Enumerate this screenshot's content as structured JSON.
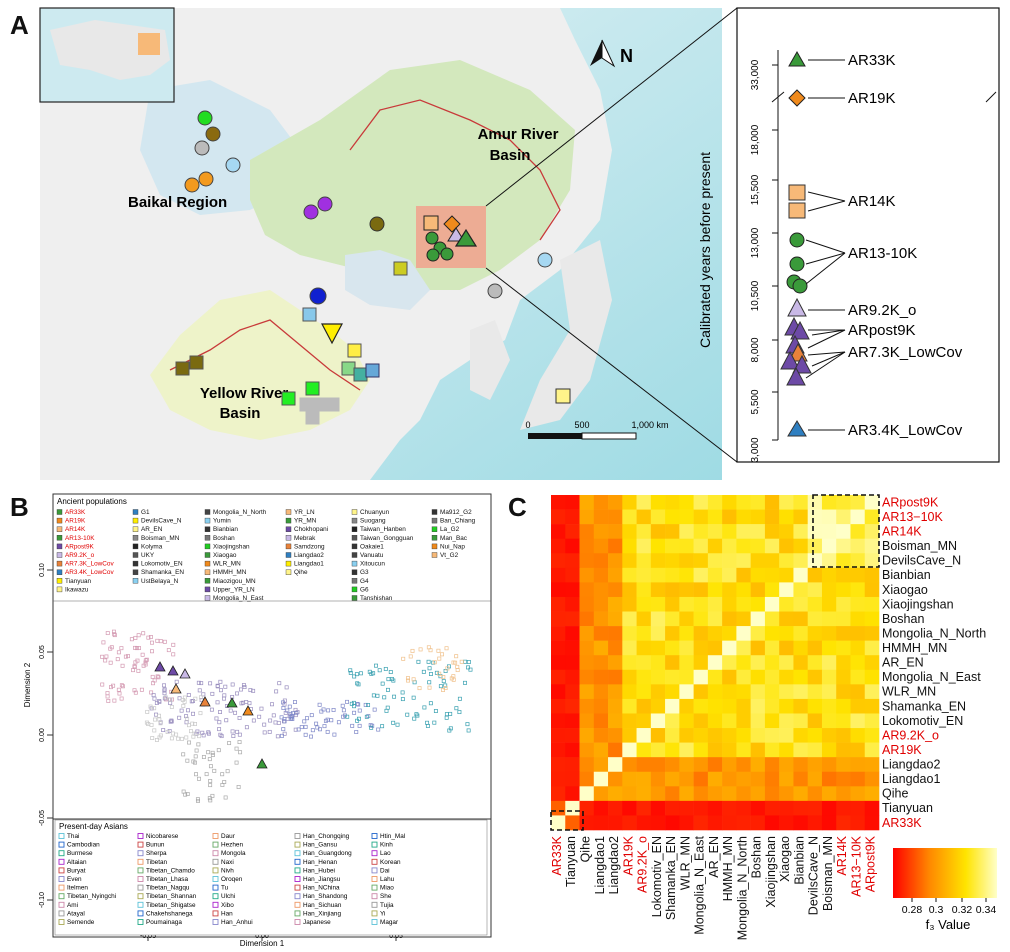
{
  "panel_labels": [
    "A",
    "B",
    "C"
  ],
  "map": {
    "north_label": "N",
    "regions": [
      {
        "id": "amur",
        "lines": [
          "Amur River",
          "Basin"
        ]
      },
      {
        "id": "baikal",
        "lines": [
          "Baikal Region"
        ]
      },
      {
        "id": "yellow",
        "lines": [
          "Yellow River",
          "Basin"
        ]
      }
    ],
    "scale": {
      "labels": [
        "0",
        "500",
        "1,000 km"
      ]
    }
  },
  "timeline": {
    "ylabel": "Calibrated years before present",
    "ticks": [
      "33,000",
      "18,000",
      "15,500",
      "13,000",
      "10,500",
      "8,000",
      "5,500",
      "3,000"
    ],
    "groups": [
      "AR33K",
      "AR19K",
      "AR14K",
      "AR13-10K",
      "AR9.2K_o",
      "ARpost9K",
      "AR7.3K_LowCov",
      "AR3.4K_LowCov"
    ],
    "colors": {
      "AR33K": "#3a9a3a",
      "AR19K": "#f08a1c",
      "AR14K": "#f7b978",
      "AR1310K": "#3a9a3a",
      "AR92K": "#c9b9e6",
      "ARpost9K": "#6d4aa6",
      "AR73K": "#e8823a",
      "AR34K": "#2f7fc1"
    }
  },
  "pca": {
    "xlabel": "Dimension 1",
    "ylabel": "Dimension 2",
    "xticks": [
      "-0.05",
      "0.00",
      "0.05"
    ],
    "yticks": [
      "0.10",
      "0.05",
      "0.00",
      "-0.05",
      "-0.10"
    ],
    "ancient_title": "Ancient populations",
    "ancient_cols": [
      [
        "AR33K",
        "AR19K",
        "AR14K",
        "AR13-10K",
        "ARpost9K",
        "AR9.2K_o",
        "AR7.3K_LowCov",
        "AR3.4K_LowCov",
        "Tianyuan",
        "Ikawazu"
      ],
      [
        "G1",
        "DevilsCave_N",
        "AR_EN",
        "Boisman_MN",
        "Kolyma",
        "UKY",
        "Lokomotiv_EN",
        "Shamanka_EN",
        "UstBelaya_N"
      ],
      [
        "Mongolia_N_North",
        "Yumin",
        "Bianbian",
        "Boshan",
        "Xiaojingshan",
        "Xiaogao",
        "WLR_MN",
        "HMMH_MN",
        "Miaozigou_MN",
        "Upper_YR_LN",
        "Mongolia_N_East"
      ],
      [
        "YR_LN",
        "YR_MN",
        "Chokhopani",
        "Mebrak",
        "Samdzong",
        "Liangdao2",
        "Liangdao1",
        "Qihe"
      ],
      [
        "Chuanyun",
        "Suogang",
        "Taiwan_Hanben",
        "Taiwan_Gongguan",
        "Oakaie1",
        "Vanuatu",
        "Xitoucun",
        "G3",
        "G4",
        "G6",
        "Tanshishan"
      ],
      [
        "Ma912_G2",
        "Ban_Chiang",
        "La_G2",
        "Man_Bac",
        "Nui_Nap",
        "Vt_G2"
      ]
    ],
    "present_title": "Present-day Asians",
    "present_cols": [
      [
        "Thai",
        "Cambodian",
        "Burmese",
        "Altaian",
        "Buryat",
        "Even",
        "Itelmen",
        "Tibetan_Nyingchi",
        "Ami",
        "Atayal",
        "Semende"
      ],
      [
        "Nicobarese",
        "Bunun",
        "Sherpa",
        "Tibetan",
        "Tibetan_Chamdo",
        "Tibetan_Lhasa",
        "Tibetan_Nagqu",
        "Tibetan_Shannan",
        "Tibetan_Shigatse",
        "Chakehshanega",
        "Poumainaga"
      ],
      [
        "Daur",
        "Hezhen",
        "Mongola",
        "Naxi",
        "Nivh",
        "Oroqen",
        "Tu",
        "Ulchi",
        "Xibo",
        "Han",
        "Han_Anhui"
      ],
      [
        "Han_Chongqing",
        "Han_Gansu",
        "Han_Guangdong",
        "Han_Henan",
        "Han_Hubei",
        "Han_Jiangsu",
        "Han_NChina",
        "Han_Shandong",
        "Han_Sichuan",
        "Han_Xinjiang",
        "Japanese"
      ],
      [
        "Htin_Mal",
        "Kinh",
        "Lao",
        "Korean",
        "Dai",
        "Lahu",
        "Miao",
        "She",
        "Tujia",
        "Yi",
        "Magar"
      ]
    ]
  },
  "heatmap": {
    "right_labels": [
      "ARpost9K",
      "AR13−10K",
      "AR14K",
      "Boisman_MN",
      "DevilsCave_N",
      "Bianbian",
      "Xiaogao",
      "Xiaojingshan",
      "Boshan",
      "Mongolia_N_North",
      "HMMH_MN",
      "AR_EN",
      "Mongolia_N_East",
      "WLR_MN",
      "Shamanka_EN",
      "Lokomotiv_EN",
      "AR9.2K_o",
      "AR19K",
      "Liangdao2",
      "Liangdao1",
      "Qihe",
      "Tianyuan",
      "AR33K"
    ],
    "bottom_labels": [
      "AR33K",
      "Tianyuan",
      "Qihe",
      "Liangdao1",
      "Liangdao2",
      "AR19K",
      "AR9.2K_o",
      "Lokomotiv_EN",
      "Shamanka_EN",
      "WLR_MN",
      "Mongolia_N_East",
      "AR_EN",
      "HMMH_MN",
      "Mongolia_N_North",
      "Boshan",
      "Xiaojingshan",
      "Xiaogao",
      "Bianbian",
      "DevilsCave_N",
      "Boisman_MN",
      "AR14K",
      "AR13−10K",
      "ARpost9K"
    ],
    "red_labels": [
      "AR33K",
      "AR19K",
      "AR9.2K_o",
      "AR14K",
      "AR13−10K",
      "ARpost9K"
    ],
    "legend_ticks": [
      "0.28",
      "0.3",
      "0.32",
      "0.34"
    ],
    "legend_title": "f₃ Value",
    "color_low": "#ff0000",
    "color_high": "#ffffc8"
  }
}
